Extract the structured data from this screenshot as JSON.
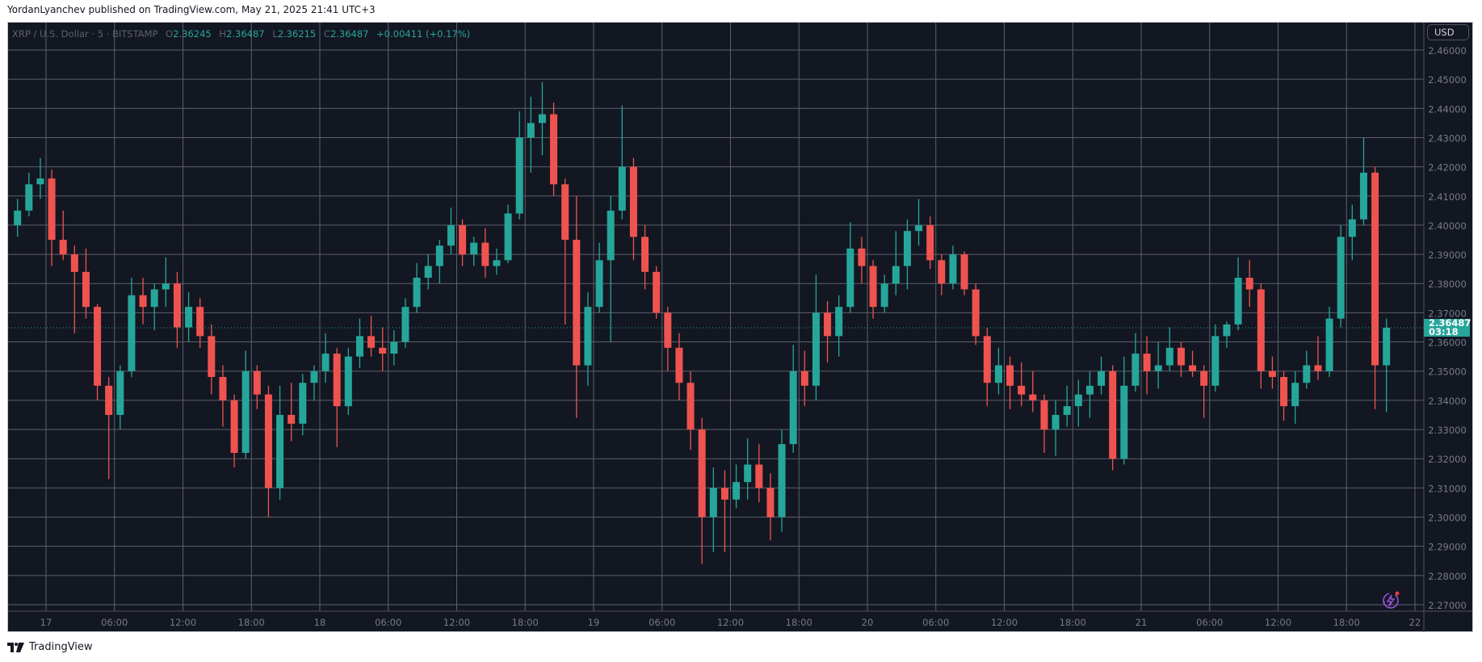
{
  "header": {
    "published": "YordanLyanchev published on TradingView.com, May 21, 2025 21:41 UTC+3"
  },
  "legend": {
    "symbol": "XRP / U.S. Dollar · 5 · BITSTAMP",
    "o_label": "O",
    "o": "2.36245",
    "h_label": "H",
    "h": "2.36487",
    "l_label": "L",
    "l": "2.36215",
    "c_label": "C",
    "c": "2.36487",
    "change": "+0.00411 (+0.17%)"
  },
  "currency_button": "USD",
  "last_price_tag": {
    "price": "2.36487",
    "countdown": "03:18"
  },
  "brand": {
    "name": "TradingView",
    "logo_icon": "tradingview-logo-icon"
  },
  "colors": {
    "up": "#26a69a",
    "down": "#ef5350",
    "background": "#131722",
    "grid": "#5d606b"
  },
  "chart_data": {
    "type": "candlestick",
    "title": "",
    "ylim": [
      2.265,
      2.465
    ],
    "grid": true,
    "y_ticks": [
      "2.27000",
      "2.28000",
      "2.29000",
      "2.30000",
      "2.31000",
      "2.32000",
      "2.33000",
      "2.34000",
      "2.35000",
      "2.36000",
      "2.37000",
      "2.38000",
      "2.39000",
      "2.40000",
      "2.41000",
      "2.42000",
      "2.43000",
      "2.44000",
      "2.45000",
      "2.46000"
    ],
    "x_ticks": [
      {
        "label": "17",
        "time": "2025-05-17 00:00"
      },
      {
        "label": "06:00",
        "time": "2025-05-17 06:00"
      },
      {
        "label": "12:00",
        "time": "2025-05-17 12:00"
      },
      {
        "label": "18:00",
        "time": "2025-05-17 18:00"
      },
      {
        "label": "18",
        "time": "2025-05-18 00:00"
      },
      {
        "label": "06:00",
        "time": "2025-05-18 06:00"
      },
      {
        "label": "12:00",
        "time": "2025-05-18 12:00"
      },
      {
        "label": "18:00",
        "time": "2025-05-18 18:00"
      },
      {
        "label": "19",
        "time": "2025-05-19 00:00"
      },
      {
        "label": "06:00",
        "time": "2025-05-19 06:00"
      },
      {
        "label": "12:00",
        "time": "2025-05-19 12:00"
      },
      {
        "label": "18:00",
        "time": "2025-05-19 18:00"
      },
      {
        "label": "20",
        "time": "2025-05-20 00:00"
      },
      {
        "label": "06:00",
        "time": "2025-05-20 06:00"
      },
      {
        "label": "12:00",
        "time": "2025-05-20 12:00"
      },
      {
        "label": "18:00",
        "time": "2025-05-20 18:00"
      },
      {
        "label": "21",
        "time": "2025-05-21 00:00"
      },
      {
        "label": "06:00",
        "time": "2025-05-21 06:00"
      },
      {
        "label": "12:00",
        "time": "2025-05-21 12:00"
      },
      {
        "label": "18:00",
        "time": "2025-05-21 18:00"
      },
      {
        "label": "22",
        "time": "2025-05-22 00:00"
      }
    ],
    "last_price": 2.36487,
    "candles_hourly_ohlc": [
      [
        "2025-05-16 21:00",
        2.4,
        2.409,
        2.396,
        2.405
      ],
      [
        "2025-05-16 22:00",
        2.405,
        2.418,
        2.403,
        2.414
      ],
      [
        "2025-05-16 23:00",
        2.414,
        2.423,
        2.409,
        2.416
      ],
      [
        "2025-05-17 00:00",
        2.416,
        2.419,
        2.386,
        2.395
      ],
      [
        "2025-05-17 01:00",
        2.395,
        2.405,
        2.388,
        2.39
      ],
      [
        "2025-05-17 02:00",
        2.39,
        2.393,
        2.363,
        2.384
      ],
      [
        "2025-05-17 03:00",
        2.384,
        2.392,
        2.368,
        2.372
      ],
      [
        "2025-05-17 04:00",
        2.372,
        2.373,
        2.34,
        2.345
      ],
      [
        "2025-05-17 05:00",
        2.345,
        2.348,
        2.313,
        2.335
      ],
      [
        "2025-05-17 06:00",
        2.335,
        2.352,
        2.33,
        2.35
      ],
      [
        "2025-05-17 07:00",
        2.35,
        2.382,
        2.348,
        2.376
      ],
      [
        "2025-05-17 08:00",
        2.376,
        2.382,
        2.366,
        2.372
      ],
      [
        "2025-05-17 09:00",
        2.372,
        2.38,
        2.364,
        2.378
      ],
      [
        "2025-05-17 10:00",
        2.378,
        2.389,
        2.372,
        2.38
      ],
      [
        "2025-05-17 11:00",
        2.38,
        2.384,
        2.358,
        2.365
      ],
      [
        "2025-05-17 12:00",
        2.365,
        2.377,
        2.36,
        2.372
      ],
      [
        "2025-05-17 13:00",
        2.372,
        2.375,
        2.358,
        2.362
      ],
      [
        "2025-05-17 14:00",
        2.362,
        2.366,
        2.342,
        2.348
      ],
      [
        "2025-05-17 15:00",
        2.348,
        2.352,
        2.331,
        2.34
      ],
      [
        "2025-05-17 16:00",
        2.34,
        2.342,
        2.317,
        2.322
      ],
      [
        "2025-05-17 17:00",
        2.322,
        2.357,
        2.32,
        2.35
      ],
      [
        "2025-05-17 18:00",
        2.35,
        2.352,
        2.337,
        2.342
      ],
      [
        "2025-05-17 19:00",
        2.342,
        2.345,
        2.3,
        2.31
      ],
      [
        "2025-05-17 20:00",
        2.31,
        2.345,
        2.306,
        2.335
      ],
      [
        "2025-05-17 21:00",
        2.335,
        2.346,
        2.326,
        2.332
      ],
      [
        "2025-05-17 22:00",
        2.332,
        2.349,
        2.328,
        2.346
      ],
      [
        "2025-05-17 23:00",
        2.346,
        2.352,
        2.34,
        2.35
      ],
      [
        "2025-05-18 00:00",
        2.35,
        2.363,
        2.346,
        2.356
      ],
      [
        "2025-05-18 01:00",
        2.356,
        2.358,
        2.324,
        2.338
      ],
      [
        "2025-05-18 02:00",
        2.338,
        2.358,
        2.335,
        2.355
      ],
      [
        "2025-05-18 03:00",
        2.355,
        2.368,
        2.351,
        2.362
      ],
      [
        "2025-05-18 04:00",
        2.362,
        2.369,
        2.355,
        2.358
      ],
      [
        "2025-05-18 05:00",
        2.358,
        2.365,
        2.35,
        2.356
      ],
      [
        "2025-05-18 06:00",
        2.356,
        2.364,
        2.352,
        2.36
      ],
      [
        "2025-05-18 07:00",
        2.36,
        2.375,
        2.358,
        2.372
      ],
      [
        "2025-05-18 08:00",
        2.372,
        2.387,
        2.37,
        2.382
      ],
      [
        "2025-05-18 09:00",
        2.382,
        2.39,
        2.378,
        2.386
      ],
      [
        "2025-05-18 10:00",
        2.386,
        2.395,
        2.38,
        2.393
      ],
      [
        "2025-05-18 11:00",
        2.393,
        2.406,
        2.39,
        2.4
      ],
      [
        "2025-05-18 12:00",
        2.4,
        2.402,
        2.386,
        2.39
      ],
      [
        "2025-05-18 13:00",
        2.39,
        2.396,
        2.386,
        2.394
      ],
      [
        "2025-05-18 14:00",
        2.394,
        2.399,
        2.382,
        2.386
      ],
      [
        "2025-05-18 15:00",
        2.386,
        2.392,
        2.383,
        2.388
      ],
      [
        "2025-05-18 16:00",
        2.388,
        2.407,
        2.387,
        2.404
      ],
      [
        "2025-05-18 17:00",
        2.404,
        2.439,
        2.402,
        2.43
      ],
      [
        "2025-05-18 18:00",
        2.43,
        2.444,
        2.418,
        2.435
      ],
      [
        "2025-05-18 19:00",
        2.435,
        2.449,
        2.424,
        2.438
      ],
      [
        "2025-05-18 20:00",
        2.438,
        2.442,
        2.41,
        2.414
      ],
      [
        "2025-05-18 21:00",
        2.414,
        2.416,
        2.366,
        2.395
      ],
      [
        "2025-05-18 22:00",
        2.395,
        2.41,
        2.334,
        2.352
      ],
      [
        "2025-05-18 23:00",
        2.352,
        2.377,
        2.345,
        2.372
      ],
      [
        "2025-05-19 00:00",
        2.372,
        2.394,
        2.37,
        2.388
      ],
      [
        "2025-05-19 01:00",
        2.388,
        2.41,
        2.36,
        2.405
      ],
      [
        "2025-05-19 02:00",
        2.405,
        2.441,
        2.402,
        2.42
      ],
      [
        "2025-05-19 03:00",
        2.42,
        2.423,
        2.388,
        2.396
      ],
      [
        "2025-05-19 04:00",
        2.396,
        2.4,
        2.378,
        2.384
      ],
      [
        "2025-05-19 05:00",
        2.384,
        2.386,
        2.368,
        2.37
      ],
      [
        "2025-05-19 06:00",
        2.37,
        2.372,
        2.35,
        2.358
      ],
      [
        "2025-05-19 07:00",
        2.358,
        2.363,
        2.34,
        2.346
      ],
      [
        "2025-05-19 08:00",
        2.346,
        2.35,
        2.323,
        2.33
      ],
      [
        "2025-05-19 09:00",
        2.33,
        2.334,
        2.284,
        2.3
      ],
      [
        "2025-05-19 10:00",
        2.3,
        2.317,
        2.288,
        2.31
      ],
      [
        "2025-05-19 11:00",
        2.31,
        2.316,
        2.288,
        2.306
      ],
      [
        "2025-05-19 12:00",
        2.306,
        2.318,
        2.303,
        2.312
      ],
      [
        "2025-05-19 13:00",
        2.312,
        2.327,
        2.306,
        2.318
      ],
      [
        "2025-05-19 14:00",
        2.318,
        2.325,
        2.305,
        2.31
      ],
      [
        "2025-05-19 15:00",
        2.31,
        2.315,
        2.292,
        2.3
      ],
      [
        "2025-05-19 16:00",
        2.3,
        2.33,
        2.295,
        2.325
      ],
      [
        "2025-05-19 17:00",
        2.325,
        2.359,
        2.322,
        2.35
      ],
      [
        "2025-05-19 18:00",
        2.35,
        2.357,
        2.338,
        2.345
      ],
      [
        "2025-05-19 19:00",
        2.345,
        2.383,
        2.34,
        2.37
      ],
      [
        "2025-05-19 20:00",
        2.37,
        2.374,
        2.353,
        2.362
      ],
      [
        "2025-05-19 21:00",
        2.362,
        2.376,
        2.355,
        2.372
      ],
      [
        "2025-05-19 22:00",
        2.372,
        2.401,
        2.37,
        2.392
      ],
      [
        "2025-05-19 23:00",
        2.392,
        2.396,
        2.38,
        2.386
      ],
      [
        "2025-05-20 00:00",
        2.386,
        2.388,
        2.368,
        2.372
      ],
      [
        "2025-05-20 01:00",
        2.372,
        2.383,
        2.37,
        2.38
      ],
      [
        "2025-05-20 02:00",
        2.38,
        2.398,
        2.376,
        2.386
      ],
      [
        "2025-05-20 03:00",
        2.386,
        2.402,
        2.378,
        2.398
      ],
      [
        "2025-05-20 04:00",
        2.398,
        2.409,
        2.393,
        2.4
      ],
      [
        "2025-05-20 05:00",
        2.4,
        2.403,
        2.385,
        2.388
      ],
      [
        "2025-05-20 06:00",
        2.388,
        2.39,
        2.376,
        2.38
      ],
      [
        "2025-05-20 07:00",
        2.38,
        2.393,
        2.378,
        2.39
      ],
      [
        "2025-05-20 08:00",
        2.39,
        2.391,
        2.376,
        2.378
      ],
      [
        "2025-05-20 09:00",
        2.378,
        2.38,
        2.359,
        2.362
      ],
      [
        "2025-05-20 10:00",
        2.362,
        2.365,
        2.338,
        2.346
      ],
      [
        "2025-05-20 11:00",
        2.346,
        2.358,
        2.342,
        2.352
      ],
      [
        "2025-05-20 12:00",
        2.352,
        2.355,
        2.337,
        2.345
      ],
      [
        "2025-05-20 13:00",
        2.345,
        2.353,
        2.338,
        2.342
      ],
      [
        "2025-05-20 14:00",
        2.342,
        2.35,
        2.336,
        2.34
      ],
      [
        "2025-05-20 15:00",
        2.34,
        2.342,
        2.322,
        2.33
      ],
      [
        "2025-05-20 16:00",
        2.33,
        2.34,
        2.321,
        2.335
      ],
      [
        "2025-05-20 17:00",
        2.335,
        2.345,
        2.331,
        2.338
      ],
      [
        "2025-05-20 18:00",
        2.338,
        2.347,
        2.331,
        2.342
      ],
      [
        "2025-05-20 19:00",
        2.342,
        2.35,
        2.334,
        2.345
      ],
      [
        "2025-05-20 20:00",
        2.345,
        2.355,
        2.342,
        2.35
      ],
      [
        "2025-05-20 21:00",
        2.35,
        2.352,
        2.316,
        2.32
      ],
      [
        "2025-05-20 22:00",
        2.32,
        2.355,
        2.318,
        2.345
      ],
      [
        "2025-05-20 23:00",
        2.345,
        2.363,
        2.343,
        2.356
      ],
      [
        "2025-05-21 00:00",
        2.356,
        2.362,
        2.342,
        2.35
      ],
      [
        "2025-05-21 01:00",
        2.35,
        2.36,
        2.344,
        2.352
      ],
      [
        "2025-05-21 02:00",
        2.352,
        2.365,
        2.35,
        2.358
      ],
      [
        "2025-05-21 03:00",
        2.358,
        2.36,
        2.348,
        2.352
      ],
      [
        "2025-05-21 04:00",
        2.352,
        2.357,
        2.348,
        2.35
      ],
      [
        "2025-05-21 05:00",
        2.35,
        2.352,
        2.334,
        2.345
      ],
      [
        "2025-05-21 06:00",
        2.345,
        2.366,
        2.343,
        2.362
      ],
      [
        "2025-05-21 07:00",
        2.362,
        2.367,
        2.358,
        2.366
      ],
      [
        "2025-05-21 08:00",
        2.366,
        2.389,
        2.364,
        2.382
      ],
      [
        "2025-05-21 09:00",
        2.382,
        2.388,
        2.372,
        2.378
      ],
      [
        "2025-05-21 10:00",
        2.378,
        2.38,
        2.344,
        2.35
      ],
      [
        "2025-05-21 11:00",
        2.35,
        2.355,
        2.344,
        2.348
      ],
      [
        "2025-05-21 12:00",
        2.348,
        2.35,
        2.333,
        2.338
      ],
      [
        "2025-05-21 13:00",
        2.338,
        2.35,
        2.332,
        2.346
      ],
      [
        "2025-05-21 14:00",
        2.346,
        2.357,
        2.344,
        2.352
      ],
      [
        "2025-05-21 15:00",
        2.352,
        2.362,
        2.347,
        2.35
      ],
      [
        "2025-05-21 16:00",
        2.35,
        2.372,
        2.348,
        2.368
      ],
      [
        "2025-05-21 17:00",
        2.368,
        2.4,
        2.365,
        2.396
      ],
      [
        "2025-05-21 18:00",
        2.396,
        2.407,
        2.388,
        2.402
      ],
      [
        "2025-05-21 19:00",
        2.402,
        2.43,
        2.4,
        2.418
      ],
      [
        "2025-05-21 20:00",
        2.418,
        2.42,
        2.337,
        2.352
      ],
      [
        "2025-05-21 21:00",
        2.352,
        2.368,
        2.336,
        2.36487
      ]
    ]
  }
}
